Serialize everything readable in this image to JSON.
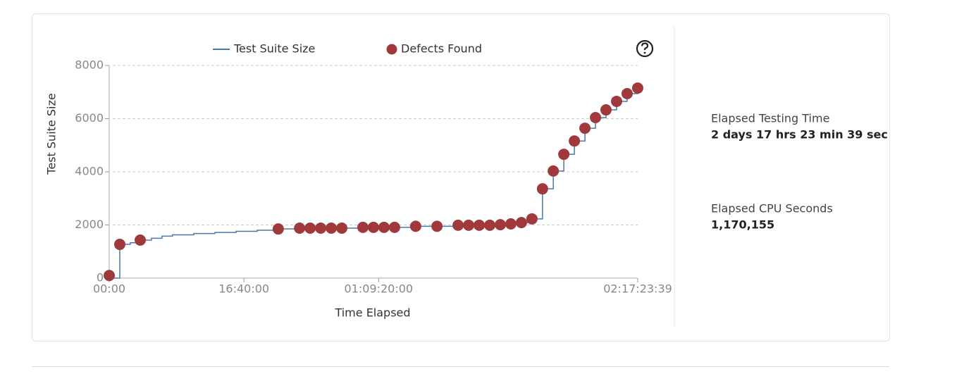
{
  "chart_data": {
    "type": "step-scatter",
    "xlabel": "Time Elapsed",
    "ylabel": "Test Suite Size",
    "xlim": [
      0,
      235419
    ],
    "ylim": [
      0,
      8000
    ],
    "xticks": [
      {
        "value": 0,
        "label": "00:00"
      },
      {
        "value": 60000,
        "label": "16:40:00"
      },
      {
        "value": 120000,
        "label": "01:09:20:00"
      },
      {
        "value": 235419,
        "label": "02:17:23:39"
      }
    ],
    "yticks": [
      0,
      2000,
      4000,
      6000,
      8000
    ],
    "grid": true,
    "legend": "top",
    "series": [
      {
        "name": "Test Suite Size",
        "color": "#4a79a8",
        "kind": "step",
        "x": [
          0,
          4700,
          9400,
          14100,
          18800,
          23500,
          28200,
          37700,
          47100,
          56500,
          65900,
          75300,
          84800,
          94200,
          103600,
          113000,
          122400,
          136500,
          146000,
          155400,
          165000,
          174200,
          178900,
          183600,
          188300,
          193000,
          197800,
          202500,
          207200,
          211900,
          216600,
          221300,
          226000,
          230700,
          235419
        ],
        "values": [
          0,
          1270,
          1330,
          1430,
          1500,
          1580,
          1630,
          1680,
          1720,
          1760,
          1800,
          1850,
          1880,
          1880,
          1880,
          1910,
          1910,
          1950,
          1950,
          1990,
          1990,
          2010,
          2040,
          2090,
          2230,
          3360,
          4030,
          4660,
          5160,
          5640,
          6040,
          6330,
          6650,
          6940,
          7150
        ]
      },
      {
        "name": "Defects Found",
        "color": "#a0393c",
        "kind": "scatter",
        "x": [
          0,
          4700,
          13800,
          75300,
          84800,
          89500,
          94200,
          98900,
          103600,
          113000,
          117700,
          122400,
          127100,
          136500,
          146000,
          155400,
          160100,
          164800,
          169500,
          174200,
          178900,
          183600,
          188300,
          193000,
          197800,
          202500,
          207200,
          211900,
          216600,
          221300,
          226000,
          230700,
          235400
        ],
        "values": [
          100,
          1270,
          1430,
          1850,
          1880,
          1880,
          1880,
          1880,
          1880,
          1910,
          1910,
          1910,
          1910,
          1950,
          1950,
          1990,
          1990,
          1990,
          1990,
          2010,
          2040,
          2090,
          2230,
          3360,
          4030,
          4660,
          5160,
          5640,
          6040,
          6330,
          6650,
          6940,
          7150
        ]
      }
    ]
  },
  "stats": [
    {
      "label": "Elapsed Testing Time",
      "value": "2 days 17 hrs 23 min 39 sec"
    },
    {
      "label": "Elapsed CPU Seconds",
      "value": "1,170,155"
    }
  ]
}
